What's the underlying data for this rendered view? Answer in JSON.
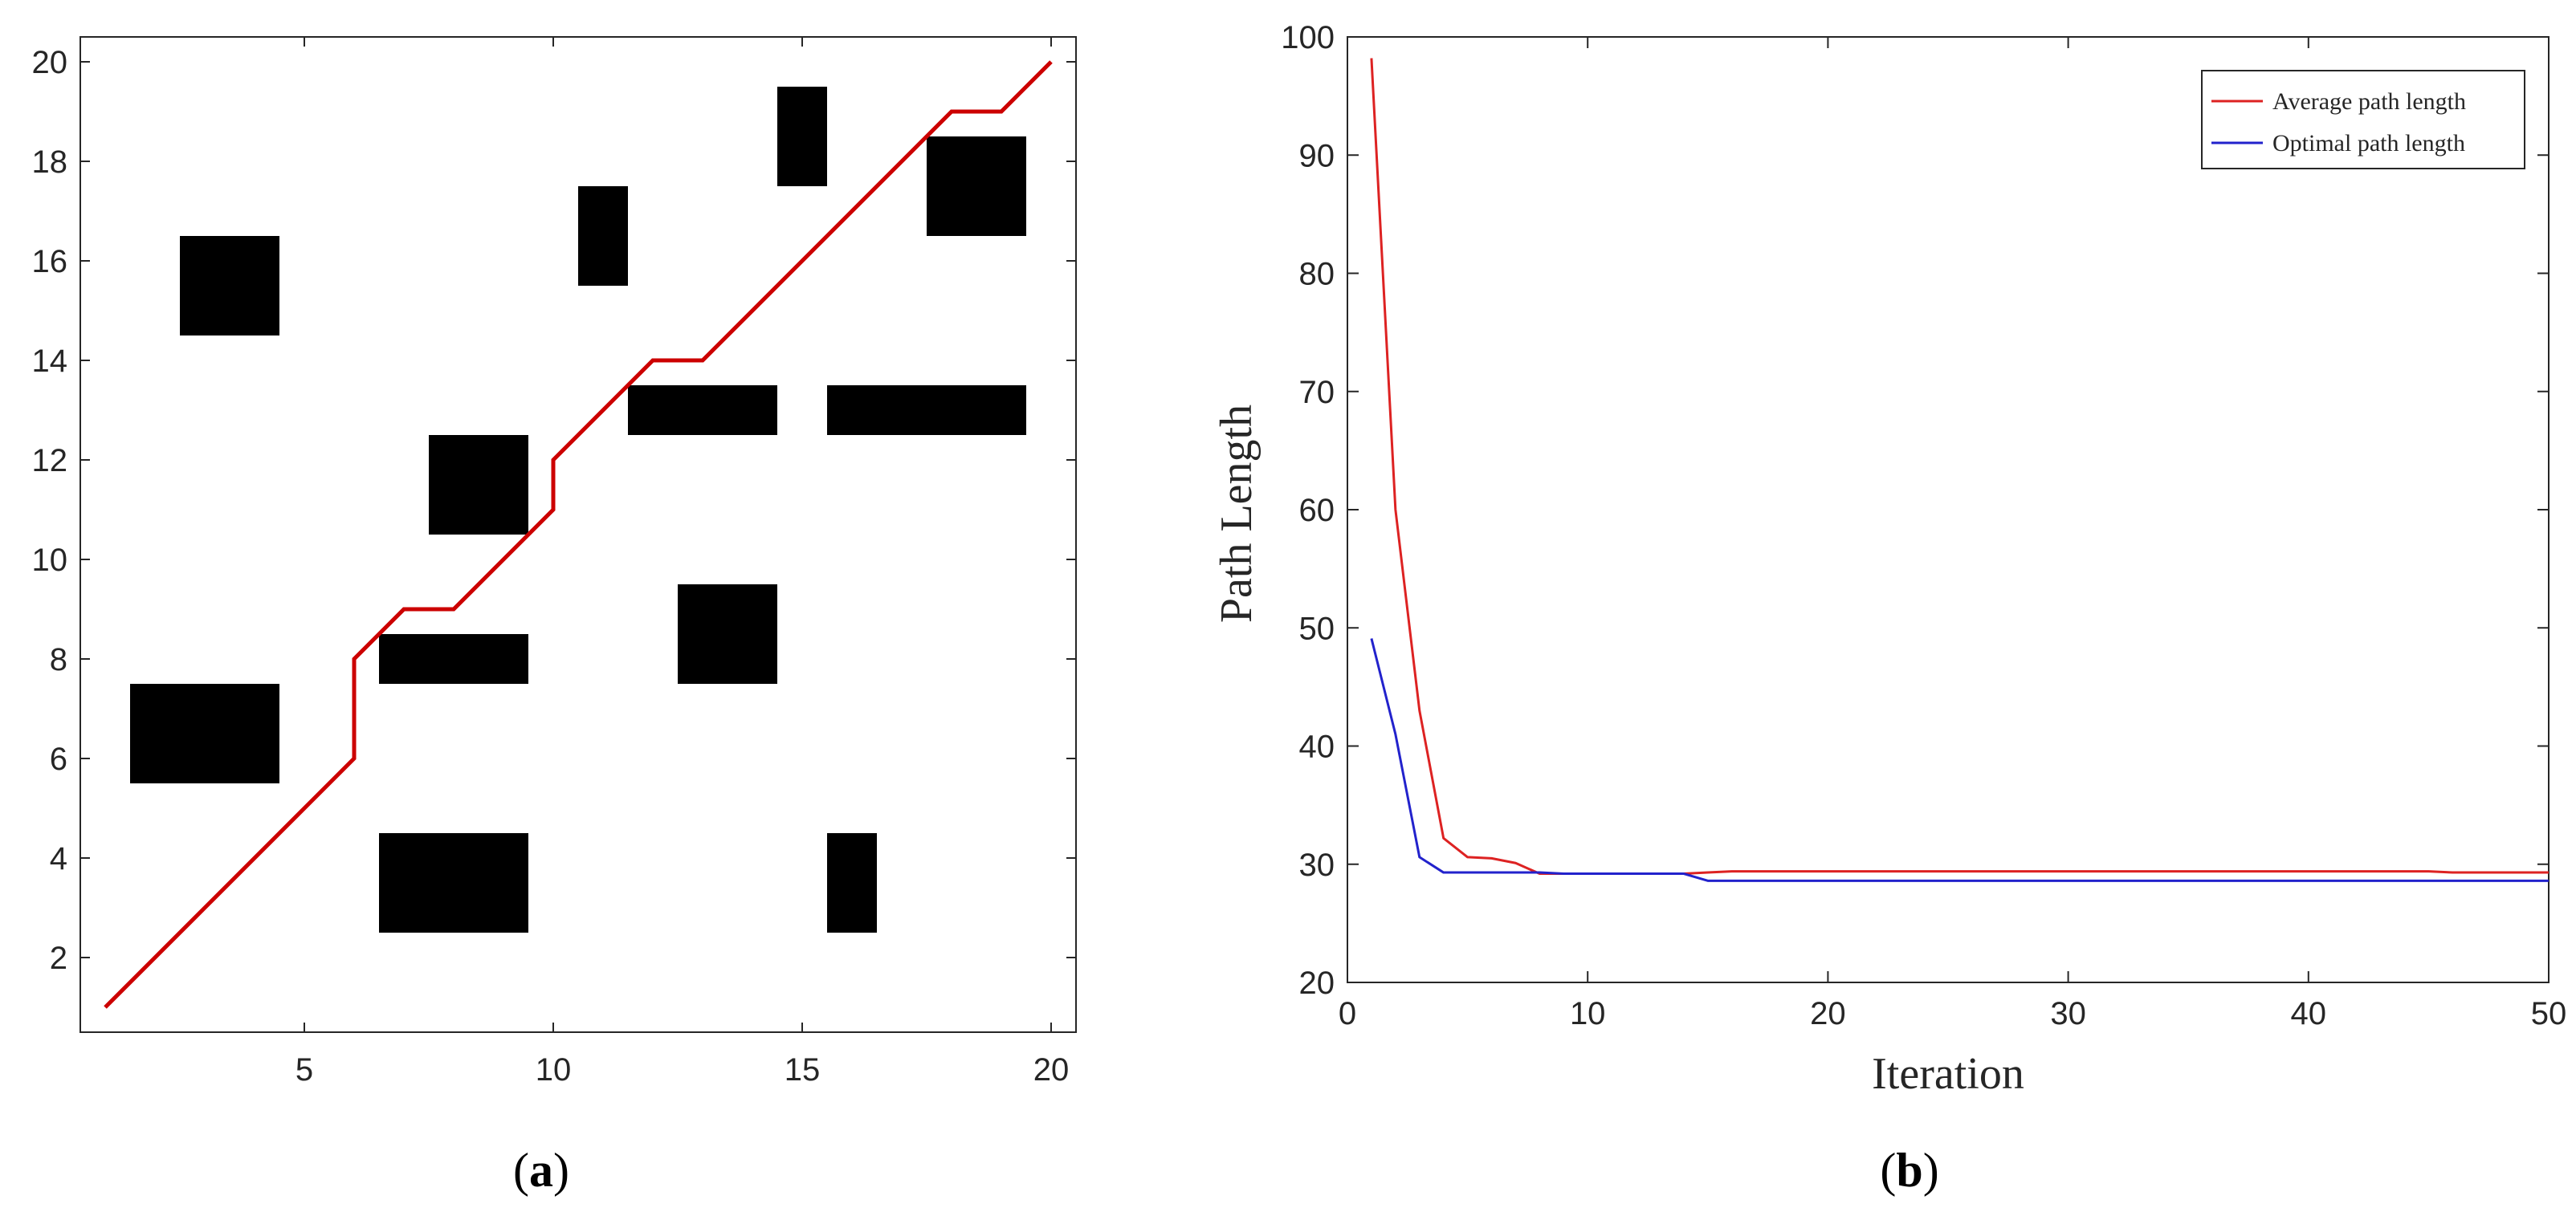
{
  "chart_data": [
    {
      "type": "grid-map",
      "panel_label": "a",
      "xlim": [
        0.5,
        20.5
      ],
      "ylim": [
        0.5,
        20.5
      ],
      "xticks": [
        5,
        10,
        15,
        20
      ],
      "yticks": [
        2,
        4,
        6,
        8,
        10,
        12,
        14,
        16,
        18,
        20
      ],
      "grid": false,
      "line_color": "#cc0000",
      "obstacle_color": "#000000",
      "obstacles": [
        {
          "x0": 1.5,
          "x1": 4.5,
          "y0": 5.5,
          "y1": 7.5
        },
        {
          "x0": 2.5,
          "x1": 4.5,
          "y0": 14.5,
          "y1": 16.5
        },
        {
          "x0": 6.5,
          "x1": 9.5,
          "y0": 2.5,
          "y1": 4.5
        },
        {
          "x0": 6.5,
          "x1": 9.5,
          "y0": 7.5,
          "y1": 8.5
        },
        {
          "x0": 7.5,
          "x1": 9.5,
          "y0": 10.5,
          "y1": 12.5
        },
        {
          "x0": 10.5,
          "x1": 11.5,
          "y0": 15.5,
          "y1": 17.5
        },
        {
          "x0": 11.5,
          "x1": 14.5,
          "y0": 12.5,
          "y1": 13.5
        },
        {
          "x0": 12.5,
          "x1": 14.5,
          "y0": 7.5,
          "y1": 9.5
        },
        {
          "x0": 14.5,
          "x1": 15.5,
          "y0": 17.5,
          "y1": 19.5
        },
        {
          "x0": 15.5,
          "x1": 16.5,
          "y0": 2.5,
          "y1": 4.5
        },
        {
          "x0": 15.5,
          "x1": 19.5,
          "y0": 12.5,
          "y1": 13.5
        },
        {
          "x0": 17.5,
          "x1": 19.5,
          "y0": 16.5,
          "y1": 18.5
        }
      ],
      "path": [
        [
          1,
          1
        ],
        [
          6,
          6
        ],
        [
          6,
          8
        ],
        [
          7,
          9
        ],
        [
          8,
          9
        ],
        [
          10,
          11
        ],
        [
          10,
          12
        ],
        [
          12,
          14
        ],
        [
          13,
          14
        ],
        [
          18,
          19
        ],
        [
          19,
          19
        ],
        [
          20,
          20
        ]
      ]
    },
    {
      "type": "line",
      "panel_label": "b",
      "xlabel": "Iteration",
      "ylabel": "Path Length",
      "xlim": [
        0,
        50
      ],
      "ylim": [
        20,
        100
      ],
      "xticks": [
        0,
        10,
        20,
        30,
        40,
        50
      ],
      "yticks": [
        20,
        30,
        40,
        50,
        60,
        70,
        80,
        90,
        100
      ],
      "grid": false,
      "legend_position": "top-right",
      "series": [
        {
          "name": "Average path length",
          "color": "#dd2222",
          "x": [
            1,
            2,
            3,
            4,
            5,
            6,
            7,
            8,
            9,
            10,
            11,
            12,
            13,
            14,
            15,
            16,
            17,
            18,
            19,
            20,
            21,
            22,
            23,
            24,
            25,
            26,
            27,
            28,
            29,
            30,
            31,
            32,
            33,
            34,
            35,
            36,
            37,
            38,
            39,
            40,
            41,
            42,
            43,
            44,
            45,
            46,
            47,
            48,
            49,
            50
          ],
          "y": [
            98.2,
            60,
            43,
            32.2,
            30.6,
            30.5,
            30.1,
            29.2,
            29.2,
            29.2,
            29.2,
            29.2,
            29.2,
            29.2,
            29.3,
            29.4,
            29.4,
            29.4,
            29.4,
            29.4,
            29.4,
            29.4,
            29.4,
            29.4,
            29.4,
            29.4,
            29.4,
            29.4,
            29.4,
            29.4,
            29.4,
            29.4,
            29.4,
            29.4,
            29.4,
            29.4,
            29.4,
            29.4,
            29.4,
            29.4,
            29.4,
            29.4,
            29.4,
            29.4,
            29.4,
            29.3,
            29.3,
            29.3,
            29.3,
            29.3
          ]
        },
        {
          "name": "Optimal path length",
          "color": "#2222cc",
          "x": [
            1,
            2,
            3,
            4,
            5,
            6,
            7,
            8,
            9,
            10,
            11,
            12,
            13,
            14,
            15,
            16,
            17,
            18,
            19,
            20,
            21,
            22,
            23,
            24,
            25,
            26,
            27,
            28,
            29,
            30,
            31,
            32,
            33,
            34,
            35,
            36,
            37,
            38,
            39,
            40,
            41,
            42,
            43,
            44,
            45,
            46,
            47,
            48,
            49,
            50
          ],
          "y": [
            49.1,
            41,
            30.6,
            29.3,
            29.3,
            29.3,
            29.3,
            29.3,
            29.2,
            29.2,
            29.2,
            29.2,
            29.2,
            29.2,
            28.6,
            28.6,
            28.6,
            28.6,
            28.6,
            28.6,
            28.6,
            28.6,
            28.6,
            28.6,
            28.6,
            28.6,
            28.6,
            28.6,
            28.6,
            28.6,
            28.6,
            28.6,
            28.6,
            28.6,
            28.6,
            28.6,
            28.6,
            28.6,
            28.6,
            28.6,
            28.6,
            28.6,
            28.6,
            28.6,
            28.6,
            28.6,
            28.6,
            28.6,
            28.6,
            28.6
          ]
        }
      ]
    }
  ]
}
